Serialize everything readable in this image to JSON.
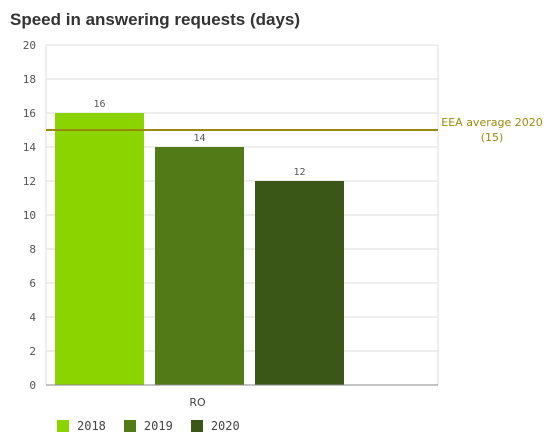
{
  "chart_data": {
    "type": "bar",
    "title": "Speed in answering requests (days)",
    "xlabel": "",
    "ylabel": "",
    "categories": [
      "RO"
    ],
    "series": [
      {
        "name": "2018",
        "values": [
          16
        ],
        "color": "#8cd400"
      },
      {
        "name": "2019",
        "values": [
          14
        ],
        "color": "#527a17"
      },
      {
        "name": "2020",
        "values": [
          12
        ],
        "color": "#3a5717"
      }
    ],
    "data_labels": [
      "16",
      "14",
      "12"
    ],
    "ylim": [
      0,
      20
    ],
    "yticks": [
      0,
      2,
      4,
      6,
      8,
      10,
      12,
      14,
      16,
      18,
      20
    ],
    "grid": true,
    "legend_position": "bottom-left",
    "reference_line": {
      "value": 15,
      "label_line1": "EEA average 2020",
      "label_line2": "(15)",
      "color": "#9a8a0c"
    }
  }
}
